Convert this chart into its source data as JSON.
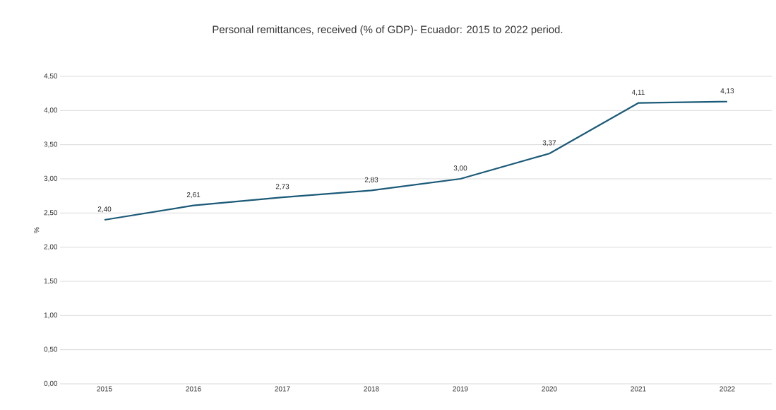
{
  "chart_data": {
    "type": "line",
    "title": "Personal remittances, received (% of GDP)- Ecuador: 2015 to 2022 period.",
    "ylabel": "%",
    "categories": [
      "2015",
      "2016",
      "2017",
      "2018",
      "2019",
      "2020",
      "2021",
      "2022"
    ],
    "series": [
      {
        "color": "#1b5a78",
        "values": [
          2.4,
          2.61,
          2.73,
          2.83,
          3.0,
          3.37,
          4.11,
          4.13
        ],
        "value_labels": [
          "2,40",
          "2,61",
          "2,73",
          "2,83",
          "3,00",
          "3,37",
          "4,11",
          "4,13"
        ]
      }
    ],
    "ylim": [
      0,
      4.5
    ],
    "yticks": [
      {
        "value": 0,
        "label": "0,00"
      },
      {
        "value": 0.5,
        "label": "0,50"
      },
      {
        "value": 1,
        "label": "1,00"
      },
      {
        "value": 1.5,
        "label": "1,50"
      },
      {
        "value": 2,
        "label": "2,00"
      },
      {
        "value": 2.5,
        "label": "2,50"
      },
      {
        "value": 3,
        "label": "3,00"
      },
      {
        "value": 3.5,
        "label": "3,50"
      },
      {
        "value": 4,
        "label": "4,00"
      },
      {
        "value": 4.5,
        "label": "4,50"
      }
    ],
    "grid": "y",
    "marker": "none",
    "line_style": "solid"
  }
}
